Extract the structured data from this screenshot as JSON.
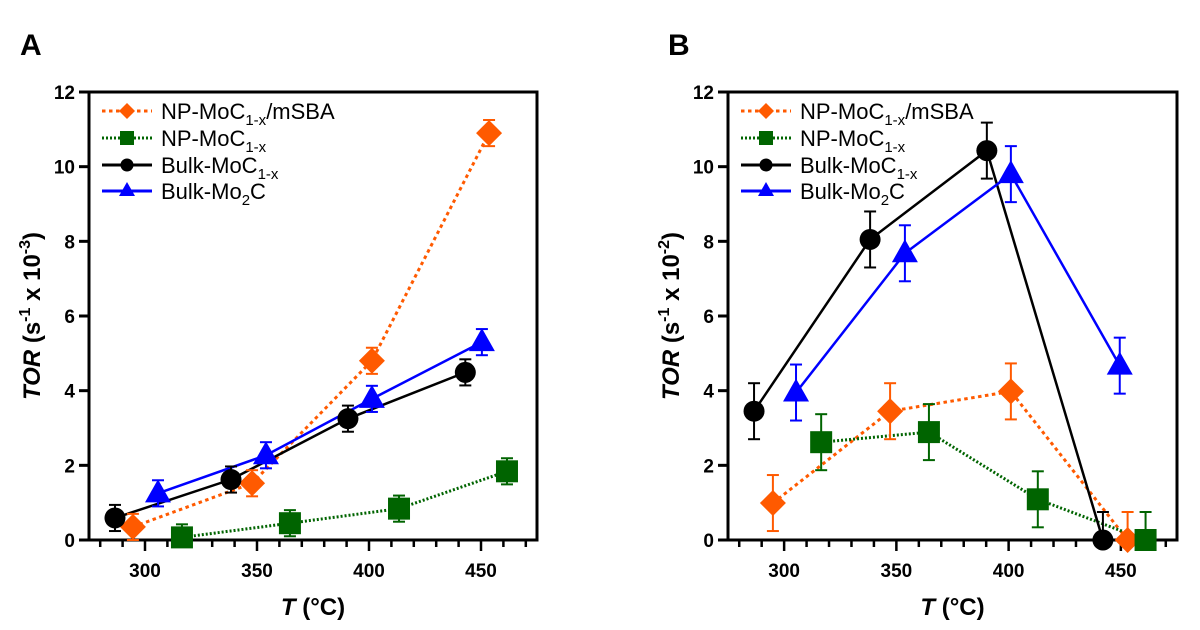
{
  "chart_data": [
    {
      "panel": "A",
      "type": "line",
      "title": "",
      "xlabel_italic": "T",
      "xlabel_rest": " (°C)",
      "ylabel_italic": "TOR",
      "ylabel_rest": " (s",
      "ylabel_sup1": "-1",
      "ylabel_mid": " x 10",
      "ylabel_sup2": "-3",
      "ylabel_end": ")",
      "xlim": [
        275,
        475
      ],
      "ylim": [
        0,
        12
      ],
      "xticks": [
        300,
        350,
        400,
        450
      ],
      "xminor_step": 10,
      "yticks": [
        0,
        2,
        4,
        6,
        8,
        10,
        12
      ],
      "legend_position": "top-left",
      "series": [
        {
          "name": "NP-MoC",
          "sub": "1-x",
          "suffix": "/mSBA",
          "color": "#ff5a00",
          "marker": "diamond",
          "linestyle": "dotted",
          "x": [
            294.6,
            347.8,
            401.3,
            453.6
          ],
          "y": [
            0.35,
            1.52,
            4.8,
            10.9
          ],
          "err": [
            0.35,
            0.35,
            0.35,
            0.35
          ]
        },
        {
          "name": "NP-MoC",
          "sub": "1-x",
          "suffix": "",
          "color": "#006400",
          "marker": "square",
          "linestyle": "dotted-fine",
          "x": [
            316.5,
            364.7,
            413.4,
            461.6
          ],
          "y": [
            0.07,
            0.45,
            0.84,
            1.84
          ],
          "err": [
            0.35,
            0.35,
            0.35,
            0.35
          ]
        },
        {
          "name": "Bulk-MoC",
          "sub": "1-x",
          "suffix": "",
          "color": "#000000",
          "marker": "circle",
          "linestyle": "solid",
          "x": [
            286.6,
            338.4,
            390.6,
            443.0
          ],
          "y": [
            0.59,
            1.62,
            3.25,
            4.49
          ],
          "err": [
            0.35,
            0.35,
            0.35,
            0.35
          ]
        },
        {
          "name": "Bulk-Mo",
          "sub": "2",
          "suffix": "C",
          "color": "#0000ff",
          "marker": "triangle",
          "linestyle": "solid",
          "x": [
            305.8,
            354.0,
            401.3,
            450.4
          ],
          "y": [
            1.25,
            2.27,
            3.78,
            5.3
          ],
          "err": [
            0.35,
            0.35,
            0.35,
            0.35
          ]
        }
      ]
    },
    {
      "panel": "B",
      "type": "line",
      "title": "",
      "xlabel_italic": "T",
      "xlabel_rest": " (°C)",
      "ylabel_italic": "TOR",
      "ylabel_rest": " (s",
      "ylabel_sup1": "-1",
      "ylabel_mid": " x 10",
      "ylabel_sup2": "-2",
      "ylabel_end": ")",
      "xlim": [
        275,
        475
      ],
      "ylim": [
        0,
        12
      ],
      "xticks": [
        300,
        350,
        400,
        450
      ],
      "xminor_step": 10,
      "yticks": [
        0,
        2,
        4,
        6,
        8,
        10,
        12
      ],
      "legend_position": "top-left",
      "series": [
        {
          "name": "NP-MoC",
          "sub": "1-x",
          "suffix": "/mSBA",
          "color": "#ff5a00",
          "marker": "diamond",
          "linestyle": "dotted",
          "x": [
            295.0,
            347.2,
            401.0,
            453.0
          ],
          "y": [
            0.99,
            3.45,
            3.98,
            0.0
          ],
          "err": [
            0.75,
            0.75,
            0.75,
            0.75
          ]
        },
        {
          "name": "NP-MoC",
          "sub": "1-x",
          "suffix": "",
          "color": "#006400",
          "marker": "square",
          "linestyle": "dotted-fine",
          "x": [
            316.5,
            364.5,
            413.0,
            461.0
          ],
          "y": [
            2.62,
            2.89,
            1.09,
            0.0
          ],
          "err": [
            0.75,
            0.75,
            0.75,
            0.75
          ]
        },
        {
          "name": "Bulk-MoC",
          "sub": "1-x",
          "suffix": "",
          "color": "#000000",
          "marker": "circle",
          "linestyle": "solid",
          "x": [
            286.6,
            338.3,
            390.3,
            442.0
          ],
          "y": [
            3.45,
            8.05,
            10.43,
            0.0
          ],
          "err": [
            0.75,
            0.75,
            0.75,
            0.75
          ]
        },
        {
          "name": "Bulk-Mo",
          "sub": "2",
          "suffix": "C",
          "color": "#0000ff",
          "marker": "triangle",
          "linestyle": "solid",
          "x": [
            305.3,
            353.8,
            401.0,
            449.5
          ],
          "y": [
            3.95,
            7.68,
            9.8,
            4.67
          ],
          "err": [
            0.75,
            0.75,
            0.75,
            0.75
          ]
        }
      ]
    }
  ]
}
